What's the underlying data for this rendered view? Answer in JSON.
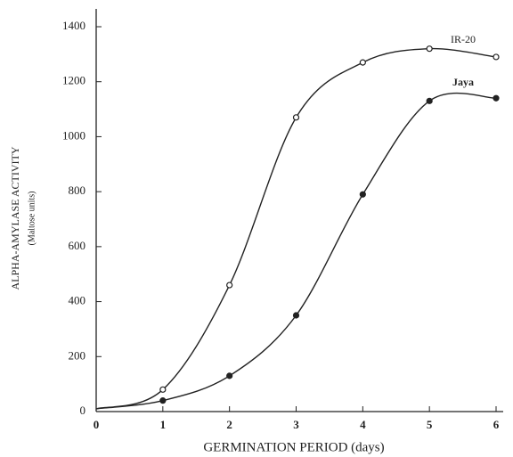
{
  "chart_data": {
    "type": "line",
    "x_label": "GERMINATION PERIOD (days)",
    "y_label": "ALPHA-AMYLASE ACTIVITY",
    "y_sublabel": "(Maltose units)",
    "x": [
      0,
      1,
      2,
      3,
      4,
      5,
      6
    ],
    "series": [
      {
        "name": "IR-20",
        "color": "#222222",
        "marker": "open",
        "values": [
          10,
          80,
          460,
          1070,
          1270,
          1320,
          1290
        ]
      },
      {
        "name": "Jaya",
        "color": "#222222",
        "marker": "filled",
        "values": [
          10,
          40,
          130,
          350,
          790,
          1130,
          1140
        ]
      }
    ],
    "xlim": [
      0,
      6
    ],
    "xticks": [
      0,
      1,
      2,
      3,
      4,
      5,
      6
    ],
    "ylim": [
      0,
      1400
    ],
    "yticks": [
      0,
      200,
      400,
      600,
      800,
      1000,
      1200,
      1400
    ]
  }
}
